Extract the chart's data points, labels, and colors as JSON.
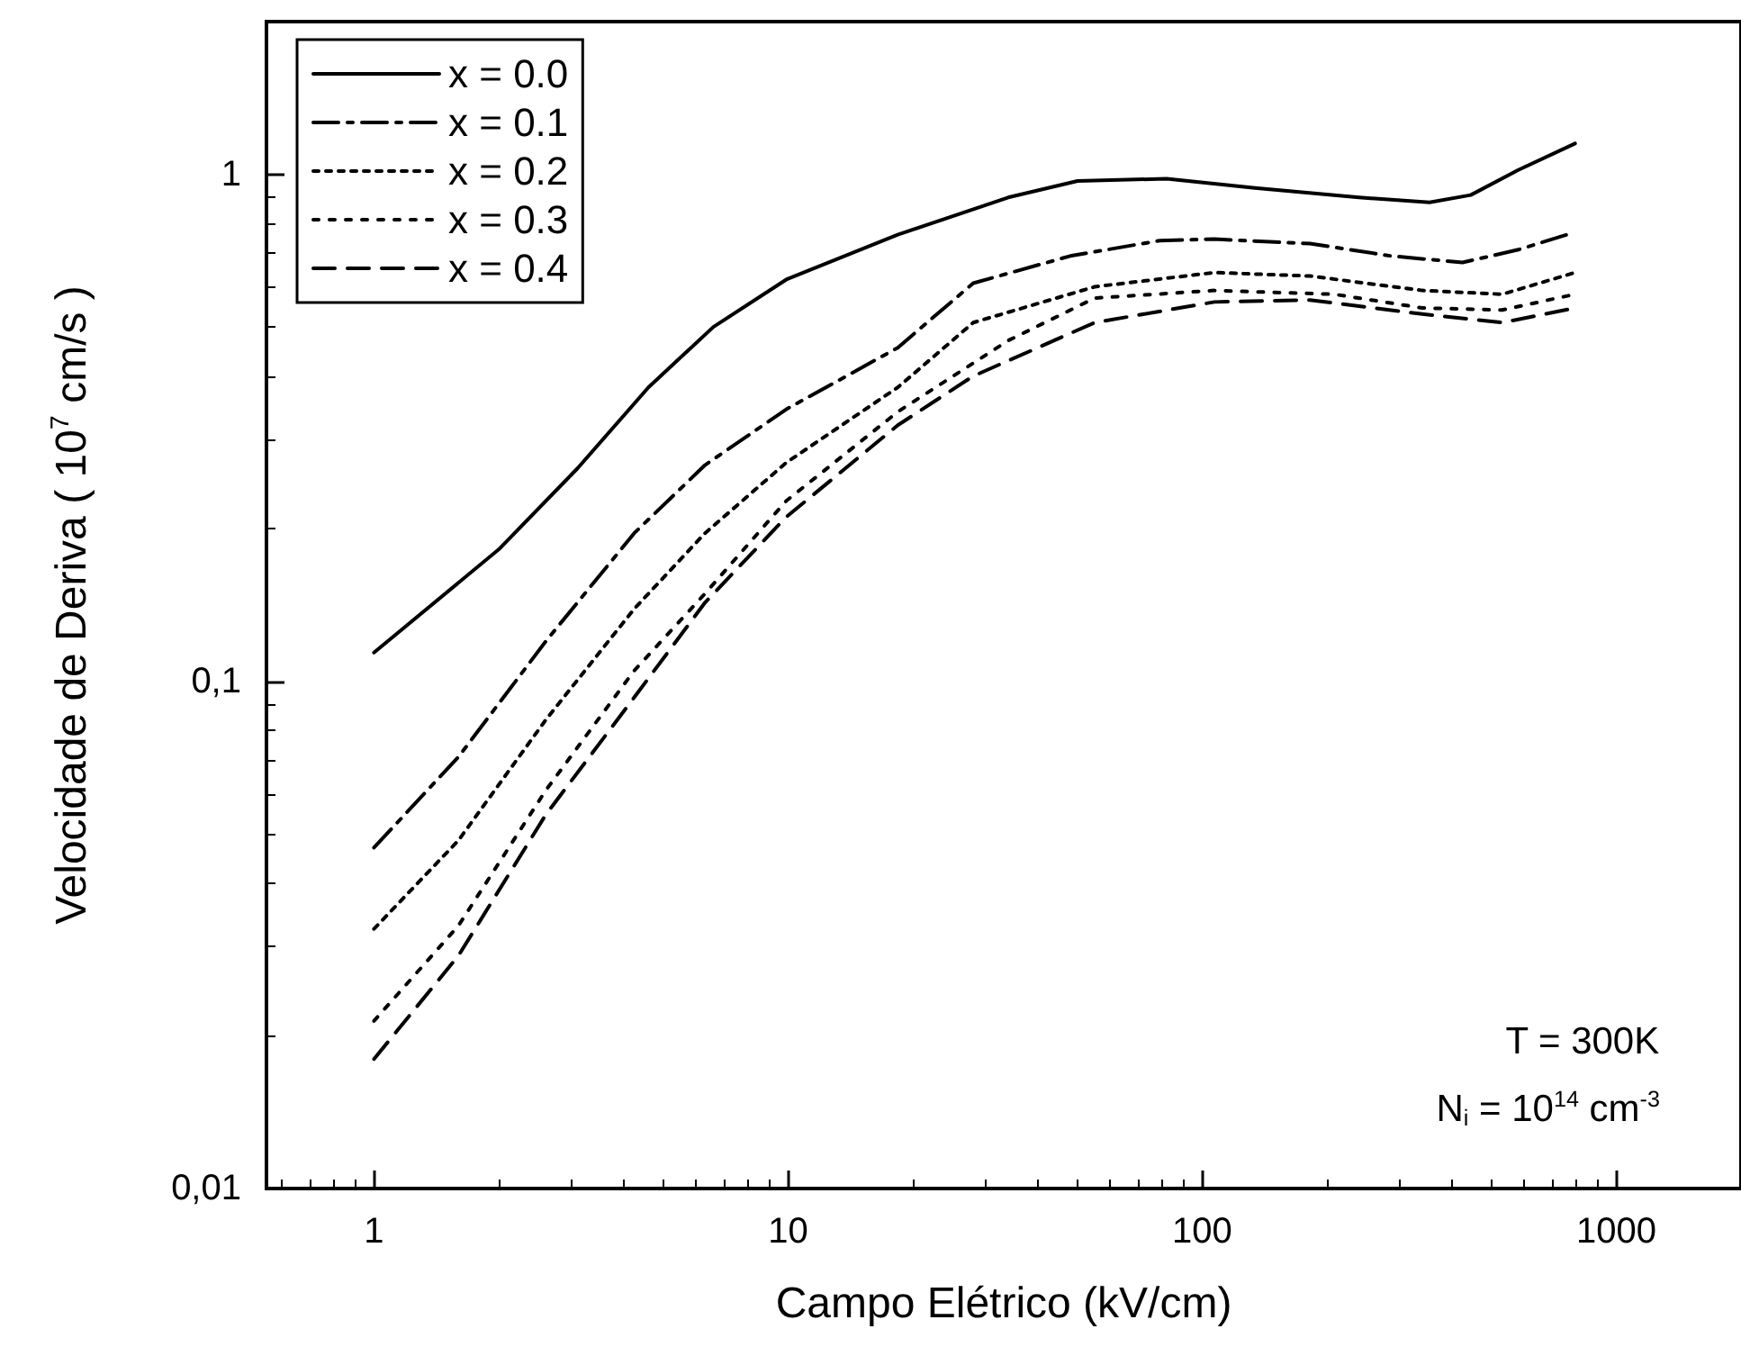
{
  "chart_data": {
    "type": "line",
    "xlabel": "Campo Elétrico (kV/cm)",
    "ylabel": "Velocidade de Deriva ( 10$^{7}$ cm/s )",
    "log": "xy",
    "xlim": [
      0.55,
      2000
    ],
    "xticks": [
      1,
      10,
      100,
      1000
    ],
    "ylim": [
      0.01,
      2
    ],
    "yticks": [
      {
        "value": 0.01,
        "label": "0,01"
      },
      {
        "value": 0.1,
        "label": "0,1"
      },
      1
    ],
    "grid": false,
    "legend": "top left",
    "marker": "none",
    "annotations": [
      "T = 300K",
      "N$_{i}$ = 10$^{14}$ cm$^{-3}$"
    ],
    "series": [
      {
        "name": "x = 0.0",
        "color": "#000000",
        "line_style": "solid",
        "x": [
          1,
          2,
          3.1,
          4.6,
          6.6,
          9.9,
          18.4,
          34,
          50,
          82,
          134,
          239,
          354,
          445,
          580,
          795
        ],
        "values": [
          0.114,
          0.182,
          0.263,
          0.38,
          0.5,
          0.62,
          0.76,
          0.9,
          0.97,
          0.98,
          0.94,
          0.9,
          0.88,
          0.91,
          1.02,
          1.15
        ]
      },
      {
        "name": "x = 0.1",
        "color": "#000000",
        "line_style": "dashdot",
        "x": [
          1,
          1.6,
          2.6,
          4.25,
          6.3,
          9.9,
          18.4,
          28,
          48,
          79,
          107,
          182,
          286,
          425,
          580,
          760
        ],
        "values": [
          0.047,
          0.071,
          0.12,
          0.196,
          0.267,
          0.344,
          0.455,
          0.61,
          0.69,
          0.74,
          0.745,
          0.73,
          0.69,
          0.67,
          0.71,
          0.76
        ]
      },
      {
        "name": "x = 0.2",
        "color": "#000000",
        "line_style": "dotted",
        "x": [
          1,
          1.6,
          2.6,
          4.25,
          6.3,
          9.9,
          18.4,
          28,
          55,
          107,
          182,
          340,
          530,
          795
        ],
        "values": [
          0.0325,
          0.0486,
          0.084,
          0.139,
          0.196,
          0.27,
          0.38,
          0.51,
          0.6,
          0.64,
          0.63,
          0.59,
          0.58,
          0.64
        ]
      },
      {
        "name": "x = 0.3",
        "color": "#000000",
        "line_style": "loosely dotted",
        "x": [
          1,
          1.6,
          2.6,
          4.25,
          6.3,
          9.9,
          18.4,
          34,
          55,
          107,
          208,
          340,
          530,
          795
        ],
        "values": [
          0.0214,
          0.033,
          0.061,
          0.105,
          0.149,
          0.227,
          0.34,
          0.47,
          0.57,
          0.59,
          0.58,
          0.545,
          0.54,
          0.58
        ]
      },
      {
        "name": "x = 0.4",
        "color": "#000000",
        "line_style": "dashed",
        "x": [
          1,
          1.6,
          2.6,
          4.25,
          6.3,
          9.9,
          18.4,
          28,
          55,
          107,
          182,
          340,
          530,
          795
        ],
        "values": [
          0.018,
          0.0288,
          0.0546,
          0.093,
          0.143,
          0.211,
          0.32,
          0.4,
          0.51,
          0.56,
          0.565,
          0.53,
          0.51,
          0.545
        ]
      }
    ]
  }
}
